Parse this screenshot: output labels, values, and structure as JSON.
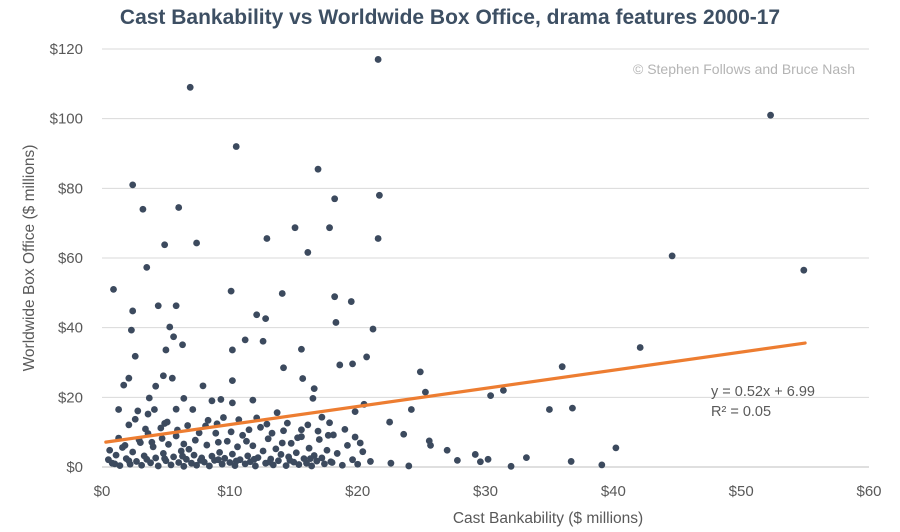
{
  "colors": {
    "title": "#3d4f63",
    "text": "#595959",
    "grid": "#d9d9d9",
    "axis": "#bfbfbf",
    "point": "#3c4a5e",
    "trend": "#ed7d31",
    "credit": "#b4b4b4"
  },
  "chart_data": {
    "type": "scatter",
    "title": "Cast Bankability vs Worldwide Box Office, drama features 2000-17",
    "xlabel": "Cast Bankability ($ millions)",
    "ylabel": "Worldwide Box Office ($ millions)",
    "xlim": [
      0,
      60
    ],
    "ylim": [
      0,
      120
    ],
    "x_ticks": [
      0,
      10,
      20,
      30,
      40,
      50,
      60
    ],
    "y_ticks": [
      0,
      20,
      40,
      60,
      80,
      100,
      120
    ],
    "x_tick_labels": [
      "$0",
      "$10",
      "$20",
      "$30",
      "$40",
      "$50",
      "$60"
    ],
    "y_tick_labels": [
      "$0",
      "$20",
      "$40",
      "$60",
      "$80",
      "$100",
      "$120"
    ],
    "grid": "horizontal",
    "credit": "© Stephen Follows and Bruce Nash",
    "trendline": {
      "equation": "y = 0.52x + 6.99",
      "r_squared": "R² = 0.05",
      "slope": 0.52,
      "intercept": 6.99,
      "x_range": [
        0.3,
        55
      ]
    },
    "points": [
      [
        21.6,
        117
      ],
      [
        52.3,
        101
      ],
      [
        6.9,
        109
      ],
      [
        10.5,
        92
      ],
      [
        16.9,
        85.5
      ],
      [
        2.4,
        81
      ],
      [
        21.7,
        78
      ],
      [
        18.2,
        77
      ],
      [
        3.2,
        74
      ],
      [
        6,
        74.5
      ],
      [
        17.8,
        68.7
      ],
      [
        15.1,
        68.7
      ],
      [
        12.9,
        65.6
      ],
      [
        21.6,
        65.6
      ],
      [
        4.9,
        63.8
      ],
      [
        7.4,
        64.3
      ],
      [
        16.1,
        61.6
      ],
      [
        44.6,
        60.6
      ],
      [
        54.9,
        56.5
      ],
      [
        3.5,
        57.3
      ],
      [
        0.9,
        51
      ],
      [
        10.1,
        50.5
      ],
      [
        14.1,
        49.8
      ],
      [
        18.2,
        48.9
      ],
      [
        19.5,
        47.5
      ],
      [
        4.4,
        46.3
      ],
      [
        5.8,
        46.3
      ],
      [
        2.4,
        44.8
      ],
      [
        12.1,
        43.7
      ],
      [
        12.8,
        42.6
      ],
      [
        18.3,
        41.5
      ],
      [
        5.3,
        40.2
      ],
      [
        2.3,
        39.3
      ],
      [
        21.2,
        39.6
      ],
      [
        5.6,
        37.4
      ],
      [
        11.2,
        36.5
      ],
      [
        12.6,
        36.1
      ],
      [
        6.3,
        35.1
      ],
      [
        42.1,
        34.3
      ],
      [
        5,
        33.6
      ],
      [
        10.2,
        33.6
      ],
      [
        15.6,
        33.8
      ],
      [
        20.7,
        31.6
      ],
      [
        2.6,
        31.8
      ],
      [
        19.6,
        29.6
      ],
      [
        18.6,
        29.3
      ],
      [
        36,
        28.8
      ],
      [
        14.2,
        28.5
      ],
      [
        24.9,
        27.3
      ],
      [
        4.8,
        26.2
      ],
      [
        5.5,
        25.5
      ],
      [
        2.1,
        25.5
      ],
      [
        15.7,
        25.4
      ],
      [
        10.2,
        24.8
      ],
      [
        4.2,
        23.2
      ],
      [
        1.7,
        23.5
      ],
      [
        7.9,
        23.3
      ],
      [
        16.6,
        22.5
      ],
      [
        25.3,
        21.5
      ],
      [
        31.4,
        22
      ],
      [
        30.4,
        20.5
      ],
      [
        16.5,
        19.7
      ],
      [
        3.7,
        19.8
      ],
      [
        6.4,
        19.7
      ],
      [
        8.6,
        19
      ],
      [
        9.3,
        19.4
      ],
      [
        11.8,
        19.2
      ],
      [
        10.2,
        18.4
      ],
      [
        20.5,
        18
      ],
      [
        24.2,
        16.5
      ],
      [
        35,
        16.5
      ],
      [
        36.8,
        16.9
      ],
      [
        19.8,
        15.9
      ],
      [
        1.3,
        16.5
      ],
      [
        2.8,
        16.1
      ],
      [
        4.1,
        16.5
      ],
      [
        5.8,
        16.6
      ],
      [
        7.1,
        16.5
      ],
      [
        3.6,
        15.2
      ],
      [
        13.7,
        15.6
      ],
      [
        17.2,
        14.3
      ],
      [
        22.5,
        12.9
      ],
      [
        4.9,
        12.5
      ],
      [
        2.1,
        12.1
      ],
      [
        8.1,
        11.8
      ],
      [
        11.5,
        10.7
      ],
      [
        15.6,
        10.7
      ],
      [
        18.1,
        9.2
      ],
      [
        23.6,
        9.4
      ],
      [
        25.6,
        7.5
      ],
      [
        20.2,
        6.9
      ],
      [
        14.1,
        6.9
      ],
      [
        9.1,
        7.1
      ],
      [
        3,
        7
      ],
      [
        6.4,
        6.6
      ],
      [
        25.7,
        6.2
      ],
      [
        27,
        4.8
      ],
      [
        40.2,
        5.5
      ],
      [
        29.2,
        3.6
      ],
      [
        30.2,
        2.2
      ],
      [
        33.2,
        2.7
      ],
      [
        22.6,
        1.1
      ],
      [
        27.8,
        1.9
      ],
      [
        29.6,
        1.5
      ],
      [
        36.7,
        1.6
      ],
      [
        24,
        0.3
      ],
      [
        32,
        0.2
      ],
      [
        39.1,
        0.6
      ],
      [
        0.5,
        2.1
      ],
      [
        0.8,
        1.1
      ],
      [
        1.1,
        3.4
      ],
      [
        1.4,
        0.4
      ],
      [
        1.6,
        5.6
      ],
      [
        1.9,
        2.4
      ],
      [
        2.2,
        0.8
      ],
      [
        2.4,
        4.3
      ],
      [
        2.7,
        1.6
      ],
      [
        2.9,
        7.8
      ],
      [
        3.1,
        0.5
      ],
      [
        3.3,
        3.2
      ],
      [
        3.6,
        9.6
      ],
      [
        3.8,
        1.2
      ],
      [
        4,
        5.8
      ],
      [
        4.2,
        2.6
      ],
      [
        4.4,
        0.3
      ],
      [
        4.6,
        11.2
      ],
      [
        4.8,
        3.9
      ],
      [
        5,
        1.8
      ],
      [
        5.2,
        6.5
      ],
      [
        5.4,
        0.6
      ],
      [
        5.6,
        2.9
      ],
      [
        5.8,
        8.9
      ],
      [
        6,
        1.3
      ],
      [
        6.2,
        4.6
      ],
      [
        6.4,
        0.2
      ],
      [
        6.6,
        2.2
      ],
      [
        6.8,
        5.1
      ],
      [
        7,
        1.1
      ],
      [
        7.2,
        3.4
      ],
      [
        7.4,
        0.5
      ],
      [
        7.6,
        9.8
      ],
      [
        7.8,
        2.6
      ],
      [
        8,
        1.4
      ],
      [
        8.2,
        6.3
      ],
      [
        8.4,
        0.3
      ],
      [
        8.6,
        3.1
      ],
      [
        8.8,
        1.9
      ],
      [
        9,
        12.4
      ],
      [
        9.2,
        4.2
      ],
      [
        9.4,
        0.8
      ],
      [
        9.6,
        2.5
      ],
      [
        9.8,
        7.4
      ],
      [
        10,
        1.3
      ],
      [
        10.2,
        3.7
      ],
      [
        10.4,
        0.4
      ],
      [
        10.6,
        5.8
      ],
      [
        10.8,
        2.1
      ],
      [
        11,
        9.1
      ],
      [
        11.2,
        0.9
      ],
      [
        11.4,
        3.2
      ],
      [
        11.6,
        1.5
      ],
      [
        11.8,
        6.1
      ],
      [
        12,
        0.3
      ],
      [
        12.2,
        2.7
      ],
      [
        12.4,
        11.4
      ],
      [
        12.6,
        4.6
      ],
      [
        12.8,
        1.1
      ],
      [
        13,
        8.1
      ],
      [
        13.2,
        2.3
      ],
      [
        13.4,
        0.6
      ],
      [
        13.6,
        5.2
      ],
      [
        13.8,
        1.8
      ],
      [
        14,
        3.6
      ],
      [
        14.2,
        10.4
      ],
      [
        14.4,
        0.4
      ],
      [
        14.6,
        2.9
      ],
      [
        14.8,
        6.8
      ],
      [
        15,
        1.4
      ],
      [
        15.2,
        4.1
      ],
      [
        15.4,
        0.7
      ],
      [
        15.6,
        8.7
      ],
      [
        15.8,
        2.4
      ],
      [
        16,
        1.1
      ],
      [
        16.2,
        5.4
      ],
      [
        16.4,
        0.3
      ],
      [
        16.6,
        3.3
      ],
      [
        16.8,
        1.7
      ],
      [
        17,
        7.9
      ],
      [
        17.2,
        2.6
      ],
      [
        17.4,
        0.9
      ],
      [
        17.6,
        4.8
      ],
      [
        17.8,
        12.7
      ],
      [
        18,
        1.3
      ],
      [
        18.4,
        3.9
      ],
      [
        18.8,
        0.5
      ],
      [
        19.2,
        6.2
      ],
      [
        19.6,
        2.1
      ],
      [
        20,
        0.8
      ],
      [
        20.4,
        4.4
      ],
      [
        21,
        1.6
      ],
      [
        0.6,
        4.8
      ],
      [
        1,
        0.9
      ],
      [
        1.3,
        8.3
      ],
      [
        1.8,
        6.2
      ],
      [
        2.6,
        13.7
      ],
      [
        3.4,
        10.9
      ],
      [
        3.9,
        7.1
      ],
      [
        4.7,
        8.2
      ],
      [
        5.1,
        12.9
      ],
      [
        5.9,
        10.6
      ],
      [
        6.7,
        11.9
      ],
      [
        7.3,
        7.7
      ],
      [
        8.3,
        13.4
      ],
      [
        8.9,
        9.7
      ],
      [
        9.5,
        14.2
      ],
      [
        10.1,
        10.1
      ],
      [
        10.7,
        13.6
      ],
      [
        11.3,
        7.4
      ],
      [
        12.1,
        14.1
      ],
      [
        12.9,
        12.3
      ],
      [
        13.3,
        9.7
      ],
      [
        14.5,
        12.6
      ],
      [
        15.3,
        8.4
      ],
      [
        16.1,
        12.1
      ],
      [
        16.9,
        10.3
      ],
      [
        17.7,
        9.1
      ],
      [
        19,
        10.8
      ],
      [
        19.8,
        8.6
      ],
      [
        2.1,
        1.8
      ],
      [
        3.5,
        2.2
      ],
      [
        4.9,
        2.4
      ],
      [
        6.3,
        3.1
      ],
      [
        7.7,
        1.9
      ],
      [
        9.1,
        2.1
      ],
      [
        10.5,
        1.7
      ],
      [
        11.9,
        2.2
      ],
      [
        13.1,
        1.4
      ],
      [
        14.7,
        1.9
      ],
      [
        16.3,
        2.4
      ],
      [
        17.9,
        1.5
      ]
    ]
  }
}
